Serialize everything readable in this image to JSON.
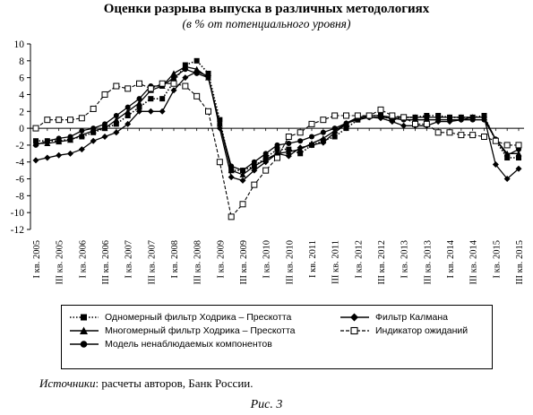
{
  "header": {
    "title": "Оценки разрыва выпуска в различных методологиях",
    "subtitle": "(в % от потенциального уровня)"
  },
  "chart_data": {
    "type": "line",
    "title": "Оценки разрыва выпуска в различных методологиях",
    "subtitle": "(в % от потенциального уровня)",
    "ylim": [
      -12,
      10
    ],
    "yticks": [
      10,
      8,
      6,
      4,
      2,
      0,
      -2,
      -4,
      -6,
      -8,
      -10,
      -12
    ],
    "grid": false,
    "legend_position": "bottom",
    "categories": [
      "I кв. 2005",
      "II кв. 2005",
      "III кв. 2005",
      "IV кв. 2005",
      "I кв. 2006",
      "II кв. 2006",
      "III кв. 2006",
      "IV кв. 2006",
      "I кв. 2007",
      "II кв. 2007",
      "III кв. 2007",
      "IV кв. 2007",
      "I кв. 2008",
      "II кв. 2008",
      "III кв. 2008",
      "IV кв. 2008",
      "I кв. 2009",
      "II кв. 2009",
      "III кв. 2009",
      "IV кв. 2009",
      "I кв. 2010",
      "II кв. 2010",
      "III кв. 2010",
      "IV кв. 2010",
      "I кв. 2011",
      "II кв. 2011",
      "III кв. 2011",
      "IV кв. 2011",
      "I кв. 2012",
      "II кв. 2012",
      "III кв. 2012",
      "IV кв. 2012",
      "I кв. 2013",
      "II кв. 2013",
      "III кв. 2013",
      "IV кв. 2013",
      "I кв. 2014",
      "II кв. 2014",
      "III кв. 2014",
      "IV кв. 2014",
      "I кв. 2015",
      "II кв. 2015",
      "III кв. 2015"
    ],
    "tick_labels": [
      "I кв. 2005",
      "III кв. 2005",
      "I кв. 2006",
      "III кв. 2006",
      "I кв. 2007",
      "III кв. 2007",
      "I кв. 2008",
      "III кв. 2008",
      "I кв. 2009",
      "III кв. 2009",
      "I кв. 2010",
      "III кв. 2010",
      "I кв. 2011",
      "III кв. 2011",
      "I кв. 2012",
      "III кв. 2012",
      "I кв. 2013",
      "III кв. 2013",
      "I кв. 2014",
      "III кв. 2014",
      "I кв. 2015",
      "III кв. 2015"
    ],
    "series": [
      {
        "name": "Одномерный фильтр Ходрика–Прескотта",
        "marker": "square-filled",
        "line": "dotted",
        "values": [
          -1.5,
          -1.5,
          -1.5,
          -1.3,
          -1,
          -0.5,
          0,
          0.5,
          1.5,
          2.5,
          3.5,
          3.5,
          5.5,
          7.5,
          8,
          6.5,
          1,
          -5,
          -5,
          -4.5,
          -3.5,
          -2.5,
          -2.5,
          -3,
          -2,
          -1.5,
          -1,
          0,
          1,
          1.5,
          1.5,
          1,
          1.3,
          1.3,
          1.5,
          1.5,
          1.3,
          1.3,
          1.3,
          1.5,
          -1.5,
          -3.5,
          -3.5
        ]
      },
      {
        "name": "Многомерный фильтр Ходрика–Прескотта",
        "marker": "triangle-filled",
        "line": "solid",
        "values": [
          -1.8,
          -1.8,
          -1.6,
          -1.4,
          -0.8,
          -0.3,
          0,
          1,
          2,
          3,
          4.5,
          5,
          6.5,
          7.3,
          7,
          6,
          0.5,
          -5,
          -5.5,
          -4.5,
          -3.7,
          -3,
          -2.8,
          -2.5,
          -1.8,
          -1.2,
          -0.3,
          0.6,
          1.3,
          1.5,
          1.5,
          1.3,
          1.3,
          1.3,
          1.3,
          1.3,
          1.3,
          1.3,
          1.3,
          1.3,
          -1.3,
          -3,
          -3
        ]
      },
      {
        "name": "Модель ненаблюдаемых компонентов",
        "marker": "circle-filled",
        "line": "solid",
        "values": [
          -2,
          -1.5,
          -1.2,
          -1,
          -0.3,
          0,
          0.5,
          1.5,
          2.5,
          3.5,
          5,
          5,
          6,
          7,
          6.5,
          6,
          0.5,
          -4.5,
          -5,
          -4,
          -3,
          -2,
          -1.8,
          -1.5,
          -1,
          -0.5,
          0,
          0.6,
          1,
          1.3,
          1.3,
          1.2,
          1,
          1,
          1,
          1,
          1,
          1,
          1,
          1,
          -1.3,
          -3.2,
          -2.5
        ]
      },
      {
        "name": "Фильтр Калмана",
        "marker": "diamond-filled",
        "line": "solid",
        "values": [
          -3.8,
          -3.5,
          -3.2,
          -3,
          -2.5,
          -1.5,
          -1,
          -0.5,
          0.5,
          2,
          2,
          2,
          4.5,
          6,
          6.7,
          6.2,
          0,
          -5.8,
          -6.2,
          -5,
          -4,
          -3,
          -3.3,
          -2.3,
          -2,
          -1.7,
          -0.5,
          0.5,
          1.2,
          1.3,
          1.2,
          0.8,
          0.3,
          0.3,
          0.3,
          0.8,
          0.8,
          1,
          1.3,
          1.3,
          -4.3,
          -6,
          -4.8
        ]
      },
      {
        "name": "Индикатор ожиданий",
        "marker": "square-open",
        "line": "dashed",
        "values": [
          0,
          1,
          1,
          1,
          1.2,
          2.3,
          4,
          5,
          4.7,
          5.3,
          4.7,
          5.3,
          5.3,
          5,
          3.8,
          2,
          -4,
          -10.5,
          -9,
          -6.7,
          -5,
          -3.5,
          -1,
          -0.5,
          0.5,
          1,
          1.5,
          1.5,
          1.5,
          1.5,
          2.2,
          1.5,
          1.3,
          0.5,
          0.5,
          -0.5,
          -0.5,
          -0.8,
          -0.8,
          -1,
          -1.5,
          -2,
          -2
        ]
      }
    ]
  },
  "legend": {
    "items": [
      {
        "label": "Одномерный фильтр  Ходрика – Прескотта"
      },
      {
        "label": "Многомерный фильтр  Ходрика – Прескотта"
      },
      {
        "label": "Модель ненаблюдаемых  компонентов"
      },
      {
        "label": "Фильтр  Калмана"
      },
      {
        "label": "Индикатор  ожиданий"
      }
    ]
  },
  "source": {
    "label": "Источники",
    "text": ": расчеты авторов, Банк России."
  },
  "caption": "Рис. 3",
  "colors": {
    "ink": "#000000",
    "background": "#ffffff"
  }
}
